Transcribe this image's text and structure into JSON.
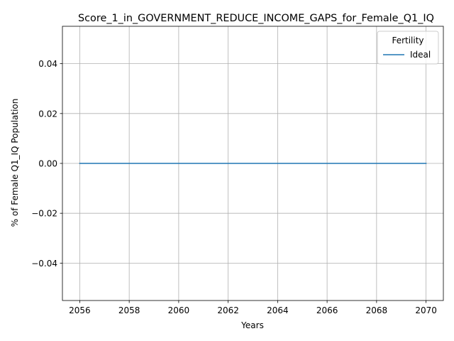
{
  "chart_data": {
    "type": "line",
    "title": "Score_1_in_GOVERNMENT_REDUCE_INCOME_GAPS_for_Female_Q1_IQ",
    "xlabel": "Years",
    "ylabel": "% of Female Q1_IQ Population",
    "x": [
      2056,
      2057,
      2058,
      2059,
      2060,
      2061,
      2062,
      2063,
      2064,
      2065,
      2066,
      2067,
      2068,
      2069,
      2070
    ],
    "series": [
      {
        "name": "Ideal",
        "color": "#1f77b4",
        "values": [
          0,
          0,
          0,
          0,
          0,
          0,
          0,
          0,
          0,
          0,
          0,
          0,
          0,
          0,
          0
        ]
      }
    ],
    "xlim": [
      2055.3,
      2070.7
    ],
    "ylim": [
      -0.055,
      0.055
    ],
    "xticks": [
      2056,
      2058,
      2060,
      2062,
      2064,
      2066,
      2068,
      2070
    ],
    "xtick_labels": [
      "2056",
      "2058",
      "2060",
      "2062",
      "2064",
      "2066",
      "2068",
      "2070"
    ],
    "yticks": [
      -0.04,
      -0.02,
      0.0,
      0.02,
      0.04
    ],
    "ytick_labels": [
      "−0.04",
      "−0.02",
      "0.00",
      "0.02",
      "0.04"
    ],
    "grid": true,
    "legend": {
      "title": "Fertility",
      "placement": "top-right"
    }
  }
}
